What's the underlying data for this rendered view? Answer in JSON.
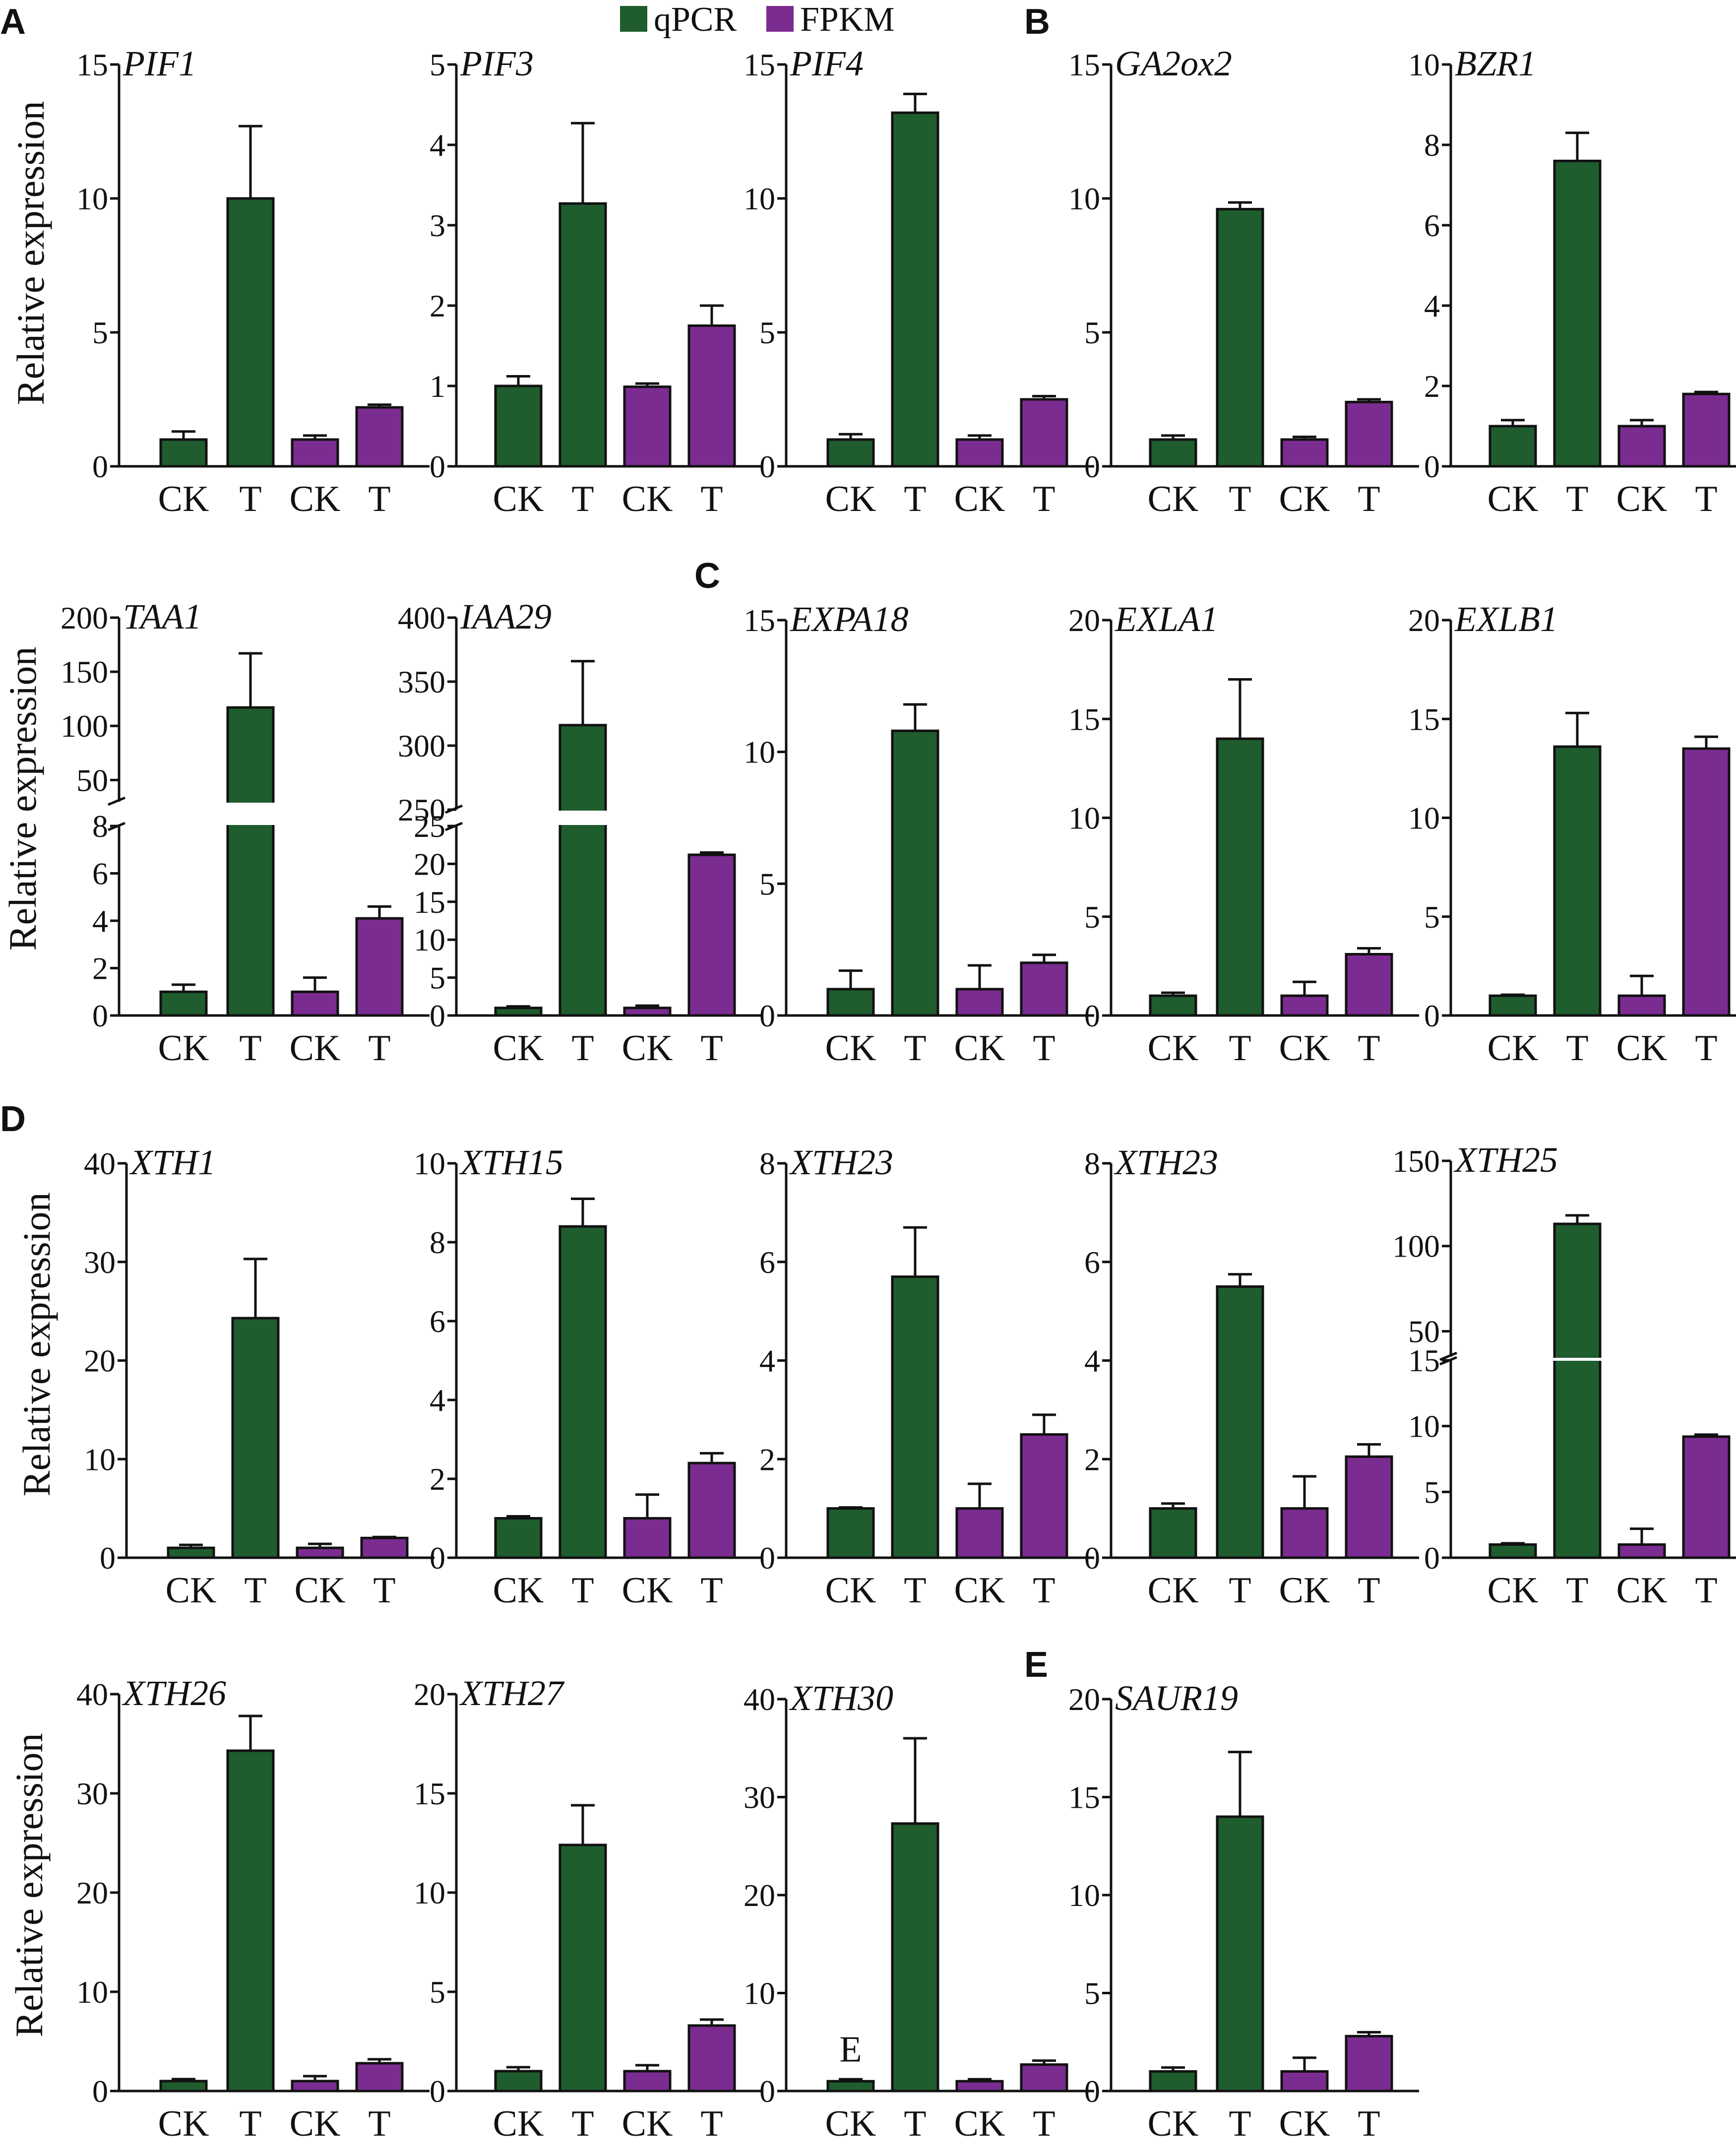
{
  "legend": [
    {
      "label": "qPCR",
      "color": "#1f5c2e"
    },
    {
      "label": "FPKM",
      "color": "#7b2c90"
    }
  ],
  "colors": {
    "qpcr": "#1f5c2e",
    "fpkm": "#7b2c90",
    "axis": "#111111"
  },
  "panel_letters": [
    "A",
    "B",
    "C",
    "D",
    "E"
  ],
  "y_axis_label": "Relative expression",
  "chart_data": [
    {
      "type": "bar",
      "title": "PIF1",
      "ylabel": "Relative expression",
      "categories": [
        "CK",
        "T",
        "CK",
        "T"
      ],
      "series_colors": [
        "qPCR",
        "qPCR",
        "FPKM",
        "FPKM"
      ],
      "values": [
        1.0,
        10.0,
        1.0,
        2.2
      ],
      "errors": [
        0.3,
        2.7,
        0.15,
        0.1
      ],
      "ylim": [
        0,
        15
      ],
      "yticks": [
        0,
        5,
        10,
        15
      ],
      "panel": "A"
    },
    {
      "type": "bar",
      "title": "PIF3",
      "ylabel": "",
      "categories": [
        "CK",
        "T",
        "CK",
        "T"
      ],
      "series_colors": [
        "qPCR",
        "qPCR",
        "FPKM",
        "FPKM"
      ],
      "values": [
        1.0,
        3.27,
        0.99,
        1.75
      ],
      "errors": [
        0.12,
        1.0,
        0.04,
        0.25
      ],
      "ylim": [
        0,
        5
      ],
      "yticks": [
        0,
        1,
        2,
        3,
        4,
        5
      ]
    },
    {
      "type": "bar",
      "title": "PIF4",
      "ylabel": "",
      "categories": [
        "CK",
        "T",
        "CK",
        "T"
      ],
      "series_colors": [
        "qPCR",
        "qPCR",
        "FPKM",
        "FPKM"
      ],
      "values": [
        1.0,
        13.2,
        1.0,
        2.5
      ],
      "errors": [
        0.2,
        0.7,
        0.15,
        0.12
      ],
      "ylim": [
        0,
        15
      ],
      "yticks": [
        0,
        5,
        10,
        15
      ]
    },
    {
      "type": "bar",
      "title": "GA2ox2",
      "ylabel": "",
      "categories": [
        "CK",
        "T",
        "CK",
        "T"
      ],
      "series_colors": [
        "qPCR",
        "qPCR",
        "FPKM",
        "FPKM"
      ],
      "values": [
        1.0,
        9.6,
        1.0,
        2.4
      ],
      "errors": [
        0.15,
        0.25,
        0.1,
        0.1
      ],
      "ylim": [
        0,
        15
      ],
      "yticks": [
        0,
        5,
        10,
        15
      ],
      "panel": "B"
    },
    {
      "type": "bar",
      "title": "BZR1",
      "ylabel": "",
      "categories": [
        "CK",
        "T",
        "CK",
        "T"
      ],
      "series_colors": [
        "qPCR",
        "qPCR",
        "FPKM",
        "FPKM"
      ],
      "values": [
        1.0,
        7.6,
        1.0,
        1.8
      ],
      "errors": [
        0.15,
        0.7,
        0.15,
        0.05
      ],
      "ylim": [
        0,
        10
      ],
      "yticks": [
        0,
        2,
        4,
        6,
        8,
        10
      ]
    },
    {
      "type": "bar",
      "title": "TAA1",
      "ylabel": "Relative expression",
      "categories": [
        "CK",
        "T",
        "CK",
        "T"
      ],
      "series_colors": [
        "qPCR",
        "qPCR",
        "FPKM",
        "FPKM"
      ],
      "values": [
        1.0,
        117,
        1.0,
        4.1
      ],
      "errors": [
        0.3,
        50,
        0.6,
        0.5
      ],
      "axis_break": {
        "lower": [
          0,
          8
        ],
        "upper": [
          30,
          200
        ]
      },
      "yticks_lower": [
        0,
        2,
        4,
        6,
        8
      ],
      "yticks_upper": [
        50,
        100,
        150,
        200
      ]
    },
    {
      "type": "bar",
      "title": "IAA29",
      "ylabel": "",
      "categories": [
        "CK",
        "T",
        "CK",
        "T"
      ],
      "series_colors": [
        "qPCR",
        "qPCR",
        "FPKM",
        "FPKM"
      ],
      "values": [
        1.0,
        316,
        1.0,
        21.2
      ],
      "errors": [
        0.2,
        50,
        0.3,
        0.3
      ],
      "axis_break": {
        "lower": [
          0,
          25
        ],
        "upper": [
          250,
          400
        ]
      },
      "yticks_lower": [
        0,
        5,
        10,
        15,
        20,
        25
      ],
      "yticks_upper": [
        250,
        300,
        350,
        400
      ]
    },
    {
      "type": "bar",
      "title": "EXPA18",
      "ylabel": "",
      "categories": [
        "CK",
        "T",
        "CK",
        "T"
      ],
      "series_colors": [
        "qPCR",
        "qPCR",
        "FPKM",
        "FPKM"
      ],
      "values": [
        1.0,
        10.8,
        1.0,
        2.0
      ],
      "errors": [
        0.7,
        1.0,
        0.9,
        0.3
      ],
      "ylim": [
        0,
        15
      ],
      "yticks": [
        0,
        5,
        10,
        15
      ],
      "panel": "C"
    },
    {
      "type": "bar",
      "title": "EXLA1",
      "ylabel": "",
      "categories": [
        "CK",
        "T",
        "CK",
        "T"
      ],
      "series_colors": [
        "qPCR",
        "qPCR",
        "FPKM",
        "FPKM"
      ],
      "values": [
        1.0,
        14.0,
        1.0,
        3.1
      ],
      "errors": [
        0.15,
        3.0,
        0.7,
        0.3
      ],
      "ylim": [
        0,
        20
      ],
      "yticks": [
        0,
        5,
        10,
        15,
        20
      ]
    },
    {
      "type": "bar",
      "title": "EXLB1",
      "ylabel": "",
      "categories": [
        "CK",
        "T",
        "CK",
        "T"
      ],
      "series_colors": [
        "qPCR",
        "qPCR",
        "FPKM",
        "FPKM"
      ],
      "values": [
        1.0,
        13.6,
        1.0,
        13.5
      ],
      "errors": [
        0.05,
        1.7,
        1.0,
        0.6
      ],
      "ylim": [
        0,
        20
      ],
      "yticks": [
        0,
        5,
        10,
        15,
        20
      ]
    },
    {
      "type": "bar",
      "title": "XTH1",
      "ylabel": "Relative expression",
      "categories": [
        "CK",
        "T",
        "CK",
        "T"
      ],
      "series_colors": [
        "qPCR",
        "qPCR",
        "FPKM",
        "FPKM"
      ],
      "values": [
        1.0,
        24.3,
        1.0,
        2.0
      ],
      "errors": [
        0.3,
        6.0,
        0.4,
        0.1
      ],
      "ylim": [
        0,
        40
      ],
      "yticks": [
        0,
        10,
        20,
        30,
        40
      ],
      "panel": "D"
    },
    {
      "type": "bar",
      "title": "XTH15",
      "ylabel": "",
      "categories": [
        "CK",
        "T",
        "CK",
        "T"
      ],
      "series_colors": [
        "qPCR",
        "qPCR",
        "FPKM",
        "FPKM"
      ],
      "values": [
        1.0,
        8.4,
        1.0,
        2.4
      ],
      "errors": [
        0.05,
        0.7,
        0.6,
        0.25
      ],
      "ylim": [
        0,
        10
      ],
      "yticks": [
        0,
        2,
        4,
        6,
        8,
        10
      ]
    },
    {
      "type": "bar",
      "title": "XTH23",
      "ylabel": "",
      "categories": [
        "CK",
        "T",
        "CK",
        "T"
      ],
      "series_colors": [
        "qPCR",
        "qPCR",
        "FPKM",
        "FPKM"
      ],
      "values": [
        1.0,
        5.7,
        1.0,
        2.5
      ],
      "errors": [
        0.02,
        1.0,
        0.5,
        0.4
      ],
      "ylim": [
        0,
        8
      ],
      "yticks": [
        0,
        2,
        4,
        6,
        8
      ]
    },
    {
      "type": "bar",
      "title": "XTH23",
      "ylabel": "",
      "categories": [
        "CK",
        "T",
        "CK",
        "T"
      ],
      "series_colors": [
        "qPCR",
        "qPCR",
        "FPKM",
        "FPKM"
      ],
      "values": [
        1.0,
        5.5,
        1.0,
        2.05
      ],
      "errors": [
        0.1,
        0.25,
        0.65,
        0.25
      ],
      "ylim": [
        0,
        8
      ],
      "yticks": [
        0,
        2,
        4,
        6,
        8
      ]
    },
    {
      "type": "bar",
      "title": "XTH25",
      "ylabel": "",
      "categories": [
        "CK",
        "T",
        "CK",
        "T"
      ],
      "series_colors": [
        "qPCR",
        "qPCR",
        "FPKM",
        "FPKM"
      ],
      "values": [
        1.0,
        113,
        1.0,
        9.2
      ],
      "errors": [
        0.1,
        5.0,
        1.2,
        0.15
      ],
      "axis_break": {
        "lower": [
          0,
          15
        ],
        "upper": [
          35,
          150
        ]
      },
      "yticks_lower": [
        0,
        5,
        10,
        15
      ],
      "yticks_upper": [
        50,
        100,
        150
      ]
    },
    {
      "type": "bar",
      "title": "XTH26",
      "ylabel": "Relative expression",
      "categories": [
        "CK",
        "T",
        "CK",
        "T"
      ],
      "series_colors": [
        "qPCR",
        "qPCR",
        "FPKM",
        "FPKM"
      ],
      "values": [
        1.0,
        34.3,
        1.0,
        2.8
      ],
      "errors": [
        0.2,
        3.5,
        0.5,
        0.4
      ],
      "ylim": [
        0,
        40
      ],
      "yticks": [
        0,
        10,
        20,
        30,
        40
      ]
    },
    {
      "type": "bar",
      "title": "XTH27",
      "ylabel": "",
      "categories": [
        "CK",
        "T",
        "CK",
        "T"
      ],
      "series_colors": [
        "qPCR",
        "qPCR",
        "FPKM",
        "FPKM"
      ],
      "values": [
        1.0,
        12.4,
        1.0,
        3.3
      ],
      "errors": [
        0.2,
        2.0,
        0.3,
        0.3
      ],
      "ylim": [
        0,
        20
      ],
      "yticks": [
        0,
        5,
        10,
        15,
        20
      ]
    },
    {
      "type": "bar",
      "title": "XTH30",
      "ylabel": "",
      "categories": [
        "CK",
        "T",
        "CK",
        "T"
      ],
      "series_colors": [
        "qPCR",
        "qPCR",
        "FPKM",
        "FPKM"
      ],
      "values": [
        1.0,
        27.3,
        1.0,
        2.7
      ],
      "errors": [
        0.2,
        8.7,
        0.2,
        0.4
      ],
      "ylim": [
        0,
        40
      ],
      "yticks": [
        0,
        10,
        20,
        30,
        40
      ],
      "annotation": "E"
    },
    {
      "type": "bar",
      "title": "SAUR19",
      "ylabel": "",
      "categories": [
        "CK",
        "T",
        "CK",
        "T"
      ],
      "series_colors": [
        "qPCR",
        "qPCR",
        "FPKM",
        "FPKM"
      ],
      "values": [
        1.0,
        14.0,
        1.0,
        2.8
      ],
      "errors": [
        0.2,
        3.3,
        0.7,
        0.2
      ],
      "ylim": [
        0,
        20
      ],
      "yticks": [
        0,
        5,
        10,
        15,
        20
      ],
      "panel": "E"
    }
  ]
}
